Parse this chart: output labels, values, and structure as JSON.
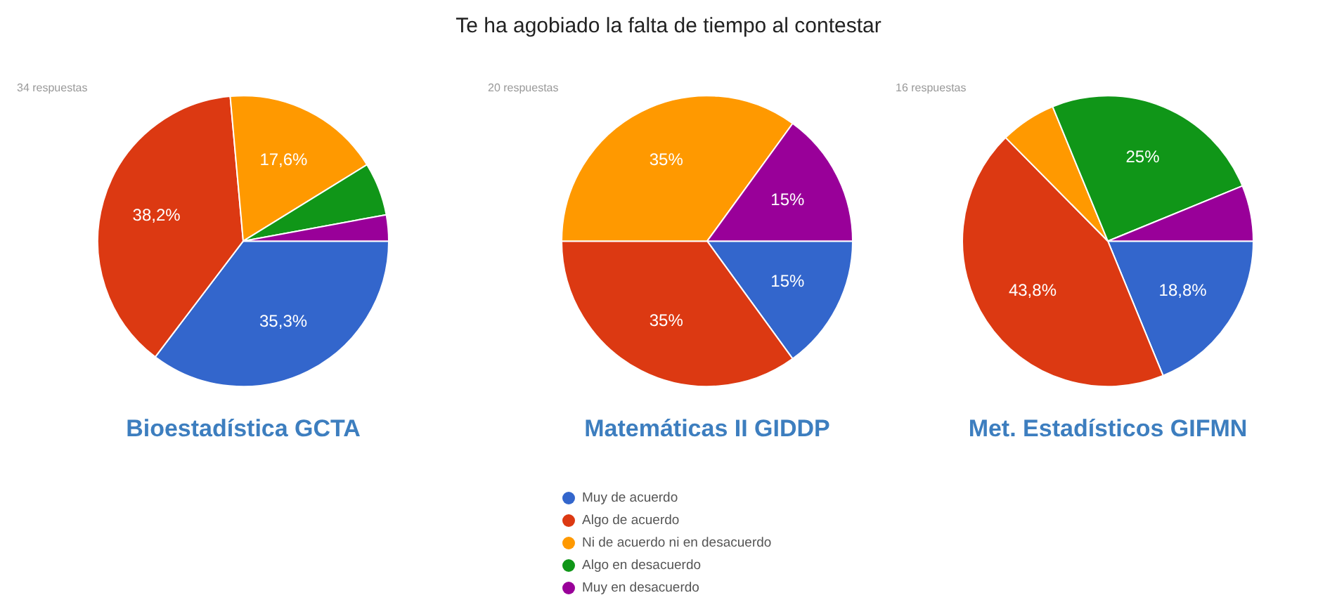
{
  "chart_data": [
    {
      "type": "pie",
      "title": "Bioestadística GCTA",
      "subtitle": "34 respuestas",
      "annotations": [
        "Te ha agobiado la falta de tiempo al contestar"
      ],
      "categories": [
        null,
        null,
        null,
        null,
        null
      ],
      "values": [
        35.3,
        38.2,
        17.6,
        5.9,
        2.9
      ],
      "colors": [
        "#3366cc",
        "#dc3912",
        "#ff9900",
        "#109618",
        "#990099"
      ],
      "value_labels": [
        "35,3%",
        "38,2%",
        "17,6%",
        null,
        null
      ],
      "legend": false
    },
    {
      "type": "pie",
      "title": "Matemáticas II GIDDP",
      "subtitle": "20 respuestas",
      "categories": [
        "Muy de acuerdo",
        "Algo de acuerdo",
        "Ni de acuerdo ni en desacuerdo",
        "Algo en desacuerdo",
        "Muy en desacuerdo"
      ],
      "values": [
        15,
        35,
        35,
        0,
        15
      ],
      "colors": [
        "#3366cc",
        "#dc3912",
        "#ff9900",
        "#109618",
        "#990099"
      ],
      "value_labels": [
        "15%",
        "35%",
        "35%",
        null,
        "15%"
      ],
      "legend": "bottom"
    },
    {
      "type": "pie",
      "title": "Met. Estadísticos GIFMN",
      "subtitle": "16 respuestas",
      "categories": [
        null,
        null,
        null,
        null,
        null
      ],
      "values": [
        18.8,
        43.8,
        6.2,
        25,
        6.2
      ],
      "colors": [
        "#3366cc",
        "#dc3912",
        "#ff9900",
        "#109618",
        "#990099"
      ],
      "value_labels": [
        "18,8%",
        "43,8%",
        null,
        "25%",
        null
      ],
      "legend": false
    }
  ]
}
